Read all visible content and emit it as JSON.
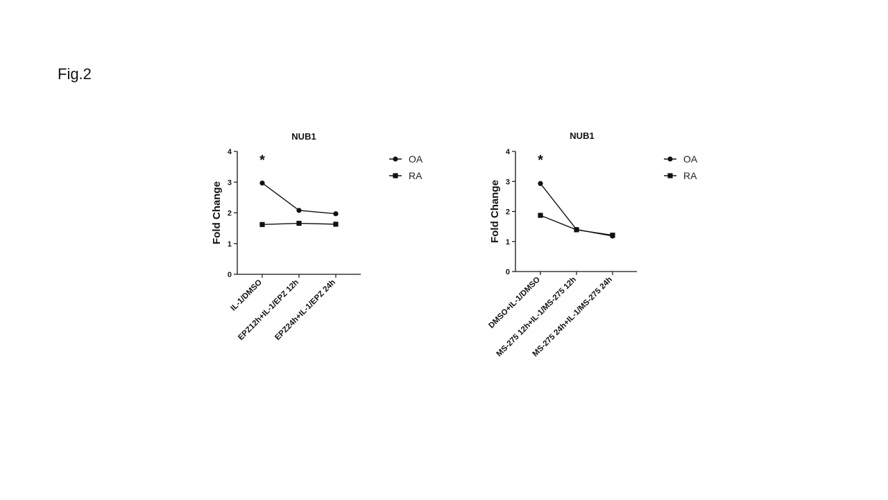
{
  "figure_label": "Fig.2",
  "chart_data": [
    {
      "type": "line",
      "title": "NUB1",
      "xlabel": "",
      "ylabel": "Fold Change",
      "ylim": [
        0,
        4
      ],
      "yticks": [
        "0",
        "1",
        "2",
        "3",
        "4"
      ],
      "categories": [
        "IL-1/DMSO",
        "EPZ12h+IL-1/EPZ 12h",
        "EPZ24h+IL-1/EPZ 24h"
      ],
      "series": [
        {
          "name": "OA",
          "marker": "circle",
          "values": [
            2.97,
            2.08,
            1.97
          ]
        },
        {
          "name": "RA",
          "marker": "square",
          "values": [
            1.62,
            1.66,
            1.63
          ]
        }
      ],
      "annotations": [
        {
          "text": "*",
          "category": "IL-1/DMSO"
        }
      ],
      "legend": "right",
      "grid": false
    },
    {
      "type": "line",
      "title": "NUB1",
      "xlabel": "",
      "ylabel": "Fold Change",
      "ylim": [
        0,
        4
      ],
      "yticks": [
        "0",
        "1",
        "2",
        "3",
        "4"
      ],
      "categories": [
        "DMSO+IL-1/DMSO",
        "MS-275 12h+IL-1/MS-275 12h",
        "MS-275 24h+IL-1/MS-275 24h"
      ],
      "series": [
        {
          "name": "OA",
          "marker": "circle",
          "values": [
            2.93,
            1.4,
            1.18
          ]
        },
        {
          "name": "RA",
          "marker": "square",
          "values": [
            1.87,
            1.39,
            1.21
          ]
        }
      ],
      "annotations": [
        {
          "text": "*",
          "category": "DMSO+IL-1/DMSO"
        }
      ],
      "legend": "right",
      "grid": false
    }
  ]
}
